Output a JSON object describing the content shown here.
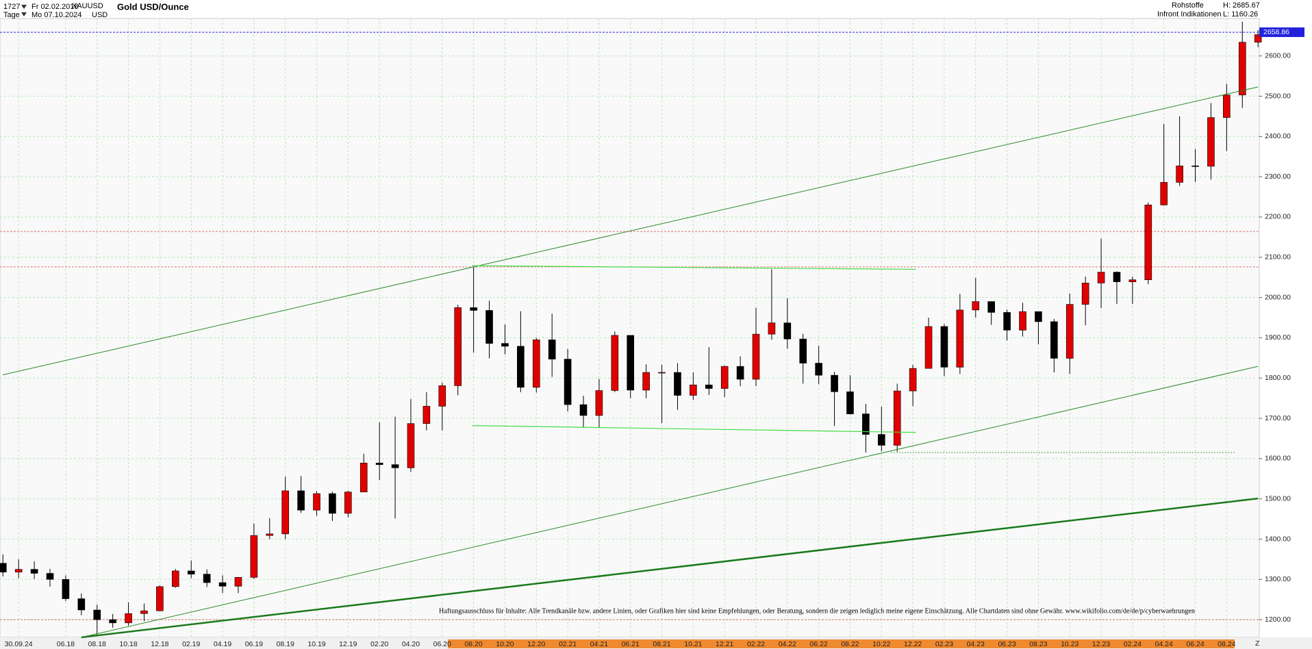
{
  "header": {
    "count": "1727",
    "start_date": "Fr 02.02.2018",
    "symbol": "XAUUSD",
    "name": "Gold USD/Ounce",
    "period": "Tage",
    "end_date": "Mo 07.10.2024",
    "currency": "USD",
    "category": "Rohstoffe",
    "high": "H: 2685.67",
    "source": "Infront Indikationen",
    "low": "L: 1160.26",
    "corner": "Z"
  },
  "chart_data": {
    "type": "candlestick",
    "disclaimer": "Haftungsausschluss für Inhalte: Alle Trendkanäle bzw. andere Linien, oder Grafiken hier sind keine Empfehlungen, oder Beratung, sondern die zeigen lediglich meine eigene Einschätzung. Alle Chartdaten sind ohne Gewähr. www.wikifolio.com/de/de/p/cyberwaehrungen",
    "ylim": [
      1156,
      2693
    ],
    "xlim": [
      0,
      80
    ],
    "yticks": [
      {
        "value": 1200,
        "label": "1200.00"
      },
      {
        "value": 1300,
        "label": "1300.00"
      },
      {
        "value": 1400,
        "label": "1400.00"
      },
      {
        "value": 1500,
        "label": "1500.00"
      },
      {
        "value": 1600,
        "label": "1600.00"
      },
      {
        "value": 1700,
        "label": "1700.00"
      },
      {
        "value": 1800,
        "label": "1800.00"
      },
      {
        "value": 1900,
        "label": "1900.00"
      },
      {
        "value": 2000,
        "label": "2000.00"
      },
      {
        "value": 2100,
        "label": "2100.00"
      },
      {
        "value": 2200,
        "label": "2200.00"
      },
      {
        "value": 2300,
        "label": "2300.00"
      },
      {
        "value": 2400,
        "label": "2400.00"
      },
      {
        "value": 2500,
        "label": "2500.00"
      },
      {
        "value": 2600,
        "label": "2600.00"
      }
    ],
    "xticks": [
      {
        "value": 1,
        "label": "30.09.24"
      },
      {
        "value": 4,
        "label": "06.18"
      },
      {
        "value": 6,
        "label": "08.18"
      },
      {
        "value": 8,
        "label": "10.18"
      },
      {
        "value": 10,
        "label": "12.18"
      },
      {
        "value": 12,
        "label": "02.19"
      },
      {
        "value": 14,
        "label": "04.19"
      },
      {
        "value": 16,
        "label": "06.19"
      },
      {
        "value": 18,
        "label": "08.19"
      },
      {
        "value": 20,
        "label": "10.19"
      },
      {
        "value": 22,
        "label": "12.19"
      },
      {
        "value": 24,
        "label": "02.20"
      },
      {
        "value": 26,
        "label": "04.20"
      },
      {
        "value": 28,
        "label": "06.20"
      },
      {
        "value": 30,
        "label": "08.20"
      },
      {
        "value": 32,
        "label": "10.20"
      },
      {
        "value": 34,
        "label": "12.20"
      },
      {
        "value": 36,
        "label": "02.21"
      },
      {
        "value": 38,
        "label": "04.21"
      },
      {
        "value": 40,
        "label": "06.21"
      },
      {
        "value": 42,
        "label": "08.21"
      },
      {
        "value": 44,
        "label": "10.21"
      },
      {
        "value": 46,
        "label": "12.21"
      },
      {
        "value": 48,
        "label": "02.22"
      },
      {
        "value": 50,
        "label": "04.22"
      },
      {
        "value": 52,
        "label": "06.22"
      },
      {
        "value": 54,
        "label": "08.22"
      },
      {
        "value": 56,
        "label": "10.22"
      },
      {
        "value": 58,
        "label": "12.22"
      },
      {
        "value": 60,
        "label": "02.23"
      },
      {
        "value": 62,
        "label": "04.23"
      },
      {
        "value": 64,
        "label": "06.23"
      },
      {
        "value": 66,
        "label": "08.23"
      },
      {
        "value": 68,
        "label": "10.23"
      },
      {
        "value": 70,
        "label": "12.23"
      },
      {
        "value": 72,
        "label": "02.24"
      },
      {
        "value": 74,
        "label": "04.24"
      },
      {
        "value": 76,
        "label": "06.24"
      },
      {
        "value": 78,
        "label": "08.24"
      }
    ],
    "grid": true,
    "up_color": "#e00000",
    "down_color": "#000000",
    "grid_color": "#b8e8b8",
    "open": [
      1340,
      1318,
      1325,
      1315,
      1300,
      1252,
      1224,
      1200,
      1192,
      1215,
      1222,
      1282,
      1321,
      1313,
      1292,
      1283,
      1305,
      1409,
      1413,
      1520,
      1472,
      1513,
      1464,
      1517,
      1589,
      1585,
      1577,
      1687,
      1730,
      1781,
      1975,
      1968,
      1886,
      1879,
      1777,
      1895,
      1847,
      1734,
      1707,
      1769,
      1906,
      1770,
      1814,
      1814,
      1757,
      1783,
      1774,
      1829,
      1797,
      1909,
      1937,
      1897,
      1837,
      1807,
      1766,
      1711,
      1660,
      1633,
      1768,
      1824,
      1928,
      1827,
      1969,
      1990,
      1963,
      1919,
      1965,
      1940,
      1849,
      1983,
      2036,
      2063,
      2039,
      2044,
      2230,
      2286,
      2327,
      2326,
      2447,
      2503,
      2634
    ],
    "high": [
      1362,
      1350,
      1345,
      1326,
      1310,
      1265,
      1237,
      1214,
      1243,
      1240,
      1285,
      1326,
      1347,
      1325,
      1310,
      1306,
      1439,
      1452,
      1555,
      1557,
      1519,
      1518,
      1520,
      1612,
      1690,
      1704,
      1748,
      1765,
      1789,
      1982,
      2075,
      1992,
      1933,
      1966,
      1900,
      1960,
      1872,
      1756,
      1798,
      1916,
      1903,
      1834,
      1833,
      1837,
      1814,
      1877,
      1831,
      1854,
      1974,
      2070,
      1998,
      1910,
      1880,
      1815,
      1807,
      1736,
      1729,
      1786,
      1833,
      1950,
      1934,
      2009,
      2049,
      1985,
      1970,
      1987,
      1950,
      1947,
      2010,
      2052,
      2146,
      2065,
      2052,
      2236,
      2431,
      2450,
      2369,
      2483,
      2531,
      2685,
      2664
    ],
    "low": [
      1307,
      1303,
      1301,
      1282,
      1246,
      1211,
      1160,
      1180,
      1185,
      1196,
      1221,
      1279,
      1303,
      1281,
      1266,
      1266,
      1301,
      1400,
      1400,
      1465,
      1458,
      1445,
      1454,
      1517,
      1547,
      1451,
      1567,
      1670,
      1670,
      1757,
      1863,
      1849,
      1859,
      1765,
      1764,
      1803,
      1717,
      1677,
      1676,
      1765,
      1750,
      1750,
      1688,
      1721,
      1746,
      1758,
      1753,
      1780,
      1780,
      1895,
      1873,
      1786,
      1785,
      1681,
      1709,
      1615,
      1618,
      1617,
      1730,
      1825,
      1805,
      1810,
      1950,
      1932,
      1893,
      1903,
      1884,
      1814,
      1810,
      1931,
      1974,
      1984,
      1984,
      2033,
      2228,
      2277,
      2287,
      2293,
      2364,
      2471,
      2622
    ],
    "close": [
      1318,
      1325,
      1315,
      1300,
      1252,
      1224,
      1200,
      1192,
      1215,
      1222,
      1282,
      1321,
      1313,
      1292,
      1283,
      1305,
      1409,
      1413,
      1520,
      1472,
      1513,
      1464,
      1517,
      1589,
      1585,
      1577,
      1687,
      1730,
      1781,
      1975,
      1968,
      1886,
      1879,
      1777,
      1895,
      1847,
      1734,
      1707,
      1769,
      1906,
      1770,
      1814,
      1814,
      1757,
      1783,
      1774,
      1829,
      1797,
      1909,
      1937,
      1897,
      1837,
      1807,
      1766,
      1711,
      1660,
      1633,
      1768,
      1824,
      1928,
      1827,
      1969,
      1990,
      1963,
      1919,
      1965,
      1940,
      1849,
      1983,
      2036,
      2063,
      2039,
      2044,
      2230,
      2286,
      2327,
      2326,
      2447,
      2503,
      2634,
      2653
    ],
    "last_price": 2658.86,
    "last_price_color": "#2222dd",
    "levels": [
      {
        "value": 2164,
        "color": "#e07070"
      },
      {
        "value": 2076,
        "color": "#e07070"
      },
      {
        "value": 1200,
        "color": "#e07070"
      }
    ],
    "trendlines": [
      {
        "x": [
          0,
          80
        ],
        "y": [
          1808,
          2523
        ],
        "color": "#2a8a2a",
        "width": 1
      },
      {
        "x": [
          5,
          80
        ],
        "y": [
          1156,
          1829
        ],
        "color": "#2a8a2a",
        "width": 1
      },
      {
        "x": [
          5,
          80
        ],
        "y": [
          1156,
          1501
        ],
        "color": "#1a7a1a",
        "width": 2.5
      },
      {
        "x": [
          29.9,
          58.2
        ],
        "y": [
          2079,
          2070
        ],
        "color": "#44dd44",
        "width": 1.2
      },
      {
        "x": [
          29.9,
          58.2
        ],
        "y": [
          1682,
          1665
        ],
        "color": "#44dd44",
        "width": 1.2
      },
      {
        "x": [
          56.6,
          78.5
        ],
        "y": [
          1615,
          1615
        ],
        "color": "#44aa44",
        "width": 1,
        "dash": "2,2"
      }
    ]
  }
}
